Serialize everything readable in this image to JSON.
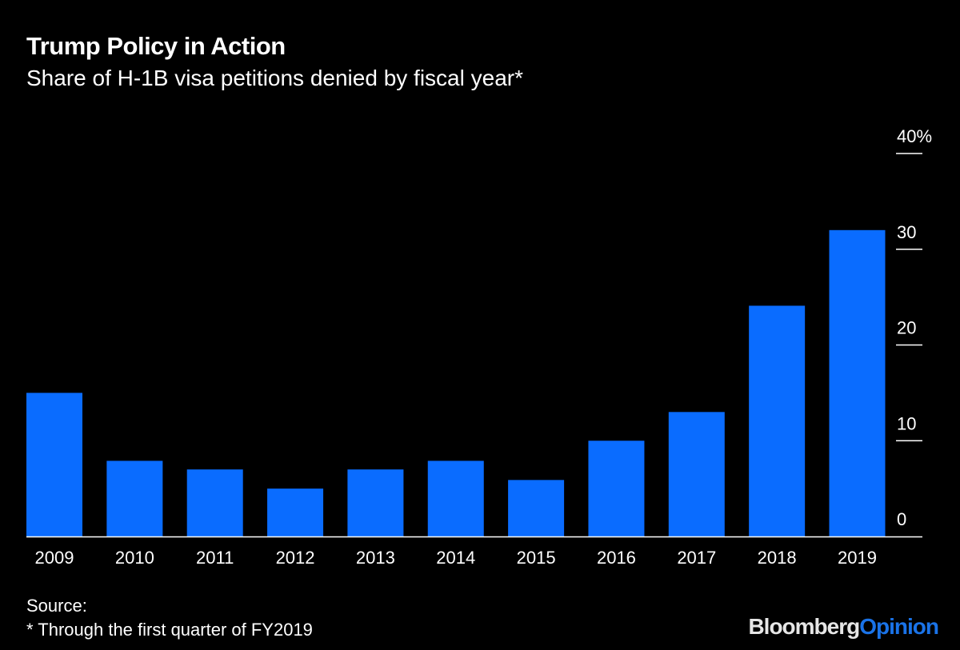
{
  "chart_data": {
    "type": "bar",
    "title": "Trump Policy in Action",
    "subtitle": "Share of H-1B visa petitions denied by fiscal year*",
    "categories": [
      "2009",
      "2010",
      "2011",
      "2012",
      "2013",
      "2014",
      "2015",
      "2016",
      "2017",
      "2018",
      "2019"
    ],
    "values": [
      15.0,
      7.9,
      7.0,
      5.0,
      7.0,
      7.9,
      5.9,
      10.0,
      13.0,
      24.1,
      32.0
    ],
    "unit": "%",
    "ylim": [
      0,
      40
    ],
    "yticks": [
      0,
      10,
      20,
      30,
      40
    ],
    "ytick_labels": [
      "0",
      "10",
      "20",
      "30",
      "40%"
    ],
    "yaxis_position": "right",
    "grid": false,
    "bar_color": "#0a6cff"
  },
  "footer": {
    "source": "Source:",
    "note": "* Through the first quarter of FY2019",
    "logo_brand": "Bloomberg",
    "logo_section": "Opinion"
  }
}
